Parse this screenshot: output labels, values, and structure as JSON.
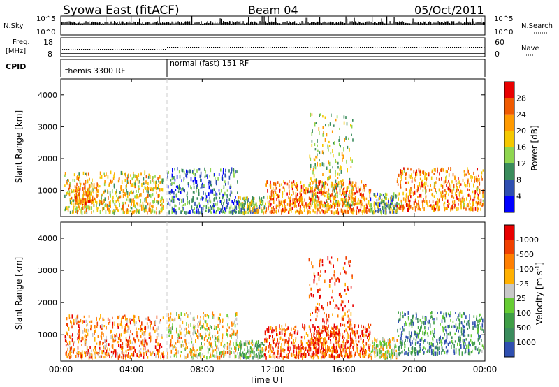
{
  "header": {
    "station": "Syowa East (fitACF)",
    "beam": "Beam 04",
    "date": "05/Oct/2011"
  },
  "nsky_panel": {
    "left_label": "N.Sky",
    "right_label": "N.Search",
    "ticks_left": [
      "10^5",
      "10^0"
    ],
    "ticks_right": [
      "10^5",
      "10^0"
    ]
  },
  "freq_panel": {
    "left_label_1": "Freq.",
    "left_label_2": "[MHz]",
    "right_label": "Nave",
    "ticks_left": [
      "18",
      "8"
    ],
    "ticks_right": [
      "60",
      "0"
    ]
  },
  "cpid_panel": {
    "label": "CPID",
    "modes": [
      {
        "name": "themis 3300 RF",
        "start_hour": 0
      },
      {
        "name": "normal (fast) 151 RF",
        "start_hour": 6
      }
    ]
  },
  "time_axis": {
    "label": "Time UT",
    "ticks": [
      "00:00",
      "04:00",
      "08:00",
      "12:00",
      "16:00",
      "20:00",
      "00:00"
    ]
  },
  "chart_data": [
    {
      "type": "heatmap",
      "quantity": "Power",
      "ylabel": "Slant Range [km]",
      "yticks": [
        1000,
        2000,
        3000,
        4000
      ],
      "ylim": [
        180,
        4500
      ],
      "xlim_hours": [
        0,
        24
      ],
      "colorbar": {
        "label": "Power [dB]",
        "tick_labels": [
          "4",
          "8",
          "12",
          "16",
          "20",
          "24",
          "28"
        ],
        "colors": [
          "#0000ff",
          "#2f4fb0",
          "#3a8c5c",
          "#8fd650",
          "#f5c800",
          "#ff9a00",
          "#f05a00",
          "#e80000"
        ]
      },
      "echo_regions": [
        {
          "start_hour": 0.2,
          "end_hour": 5.8,
          "range_km": [
            300,
            1600
          ],
          "level": 0.55
        },
        {
          "start_hour": 0.8,
          "end_hour": 1.8,
          "range_km": [
            600,
            1200
          ],
          "level": 0.75
        },
        {
          "start_hour": 6.0,
          "end_hour": 10.0,
          "range_km": [
            300,
            1700
          ],
          "level": 0.25
        },
        {
          "start_hour": 10.0,
          "end_hour": 11.5,
          "range_km": [
            300,
            800
          ],
          "level": 0.45
        },
        {
          "start_hour": 11.5,
          "end_hour": 17.5,
          "range_km": [
            300,
            1300
          ],
          "level": 0.75
        },
        {
          "start_hour": 14.0,
          "end_hour": 16.5,
          "range_km": [
            500,
            3400
          ],
          "level": 0.5
        },
        {
          "start_hour": 17.5,
          "end_hour": 19.0,
          "range_km": [
            300,
            900
          ],
          "level": 0.35
        },
        {
          "start_hour": 19.0,
          "end_hour": 23.9,
          "range_km": [
            400,
            1700
          ],
          "level": 0.72
        }
      ]
    },
    {
      "type": "heatmap",
      "quantity": "Velocity",
      "ylabel": "Slant Range [km]",
      "yticks": [
        1000,
        2000,
        3000,
        4000
      ],
      "ylim": [
        180,
        4500
      ],
      "xlim_hours": [
        0,
        24
      ],
      "colorbar": {
        "label": "Velocity [m s",
        "label_superscript": "-1",
        "label_close": "]",
        "tick_labels": [
          "1000",
          "500",
          "100",
          "25",
          "-25",
          "-100",
          "-500",
          "-1000"
        ],
        "colors": [
          "#2f4fb0",
          "#3a8c5c",
          "#3f9e46",
          "#66cc33",
          "#c8c8c8",
          "#ffb000",
          "#ff7f00",
          "#f04000",
          "#e80000"
        ]
      },
      "echo_regions": [
        {
          "start_hour": 0.2,
          "end_hour": 5.8,
          "range_km": [
            300,
            1600
          ],
          "level": 0.72
        },
        {
          "start_hour": 6.0,
          "end_hour": 10.0,
          "range_km": [
            300,
            1700
          ],
          "level": 0.55
        },
        {
          "start_hour": 10.0,
          "end_hour": 11.5,
          "range_km": [
            300,
            800
          ],
          "level": 0.35
        },
        {
          "start_hour": 11.5,
          "end_hour": 17.5,
          "range_km": [
            300,
            1300
          ],
          "level": 0.82
        },
        {
          "start_hour": 14.0,
          "end_hour": 16.5,
          "range_km": [
            500,
            3400
          ],
          "level": 0.85
        },
        {
          "start_hour": 17.5,
          "end_hour": 19.0,
          "range_km": [
            300,
            900
          ],
          "level": 0.5
        },
        {
          "start_hour": 19.0,
          "end_hour": 23.9,
          "range_km": [
            400,
            1700
          ],
          "level": 0.2
        }
      ]
    }
  ]
}
